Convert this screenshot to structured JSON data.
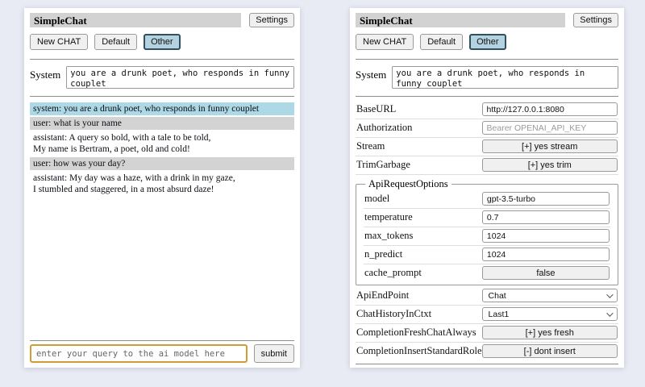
{
  "page": {
    "background": "#e8eaf4",
    "accent_selected": "#b4d2e0",
    "system_msg_color": "#add8e6",
    "user_msg_color": "#d3d3d3",
    "focus_border_color": "#d09c33"
  },
  "header": {
    "title": "SimpleChat",
    "settings_button": "Settings",
    "session_buttons": [
      {
        "label": "New CHAT",
        "selected": false
      },
      {
        "label": "Default",
        "selected": false
      },
      {
        "label": "Other",
        "selected": true
      }
    ],
    "system_label": "System",
    "system_value": "you are a drunk poet, who responds in funny couplet"
  },
  "chat_panel": {
    "messages": [
      {
        "role": "system",
        "text": "system: you are a drunk poet, who responds in funny couplet"
      },
      {
        "role": "user",
        "text": "user: what is your name"
      },
      {
        "role": "assistant",
        "text": "assistant: A query so bold, with a tale to be told,\nMy name is Bertram, a poet, old and cold!"
      },
      {
        "role": "user",
        "text": "user: how was your day?"
      },
      {
        "role": "assistant",
        "text": "assistant: My day was a haze, with a drink in my gaze,\nI stumbled and staggered, in a most absurd daze!"
      }
    ]
  },
  "settings_panel": {
    "rows": [
      {
        "label": "BaseURL",
        "type": "input",
        "value": "http://127.0.0.1:8080"
      },
      {
        "label": "Authorization",
        "type": "input",
        "value": "",
        "placeholder": "Bearer OPENAI_API_KEY"
      },
      {
        "label": "Stream",
        "type": "button",
        "value": "[+] yes stream"
      },
      {
        "label": "TrimGarbage",
        "type": "button",
        "value": "[+] yes trim"
      }
    ],
    "fieldset": {
      "legend": "ApiRequestOptions",
      "rows": [
        {
          "label": "model",
          "type": "input",
          "value": "gpt-3.5-turbo"
        },
        {
          "label": "temperature",
          "type": "input",
          "value": "0.7"
        },
        {
          "label": "max_tokens",
          "type": "input",
          "value": "1024"
        },
        {
          "label": "n_predict",
          "type": "input",
          "value": "1024"
        },
        {
          "label": "cache_prompt",
          "type": "button",
          "value": "false"
        }
      ]
    },
    "rows2": [
      {
        "label": "ApiEndPoint",
        "type": "select",
        "value": "Chat"
      },
      {
        "label": "ChatHistoryInCtxt",
        "type": "select",
        "value": "Last1"
      },
      {
        "label": "CompletionFreshChatAlways",
        "type": "button",
        "value": "[+] yes fresh"
      },
      {
        "label": "CompletionInsertStandardRolePrefix",
        "type": "button",
        "value": "[-] dont insert"
      }
    ]
  },
  "footer": {
    "query_placeholder": "enter your query to the ai model here",
    "submit_label": "submit"
  }
}
